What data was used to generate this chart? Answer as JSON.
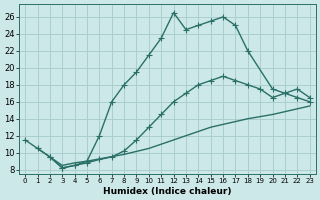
{
  "xlabel": "Humidex (Indice chaleur)",
  "xlim": [
    -0.5,
    23.5
  ],
  "ylim": [
    7.5,
    27.5
  ],
  "xticks": [
    0,
    1,
    2,
    3,
    4,
    5,
    6,
    7,
    8,
    9,
    10,
    11,
    12,
    13,
    14,
    15,
    16,
    17,
    18,
    19,
    20,
    21,
    22,
    23
  ],
  "yticks": [
    8,
    10,
    12,
    14,
    16,
    18,
    20,
    22,
    24,
    26
  ],
  "bg_color": "#cce8e8",
  "grid_color": "#aacece",
  "line_color": "#2a7068",
  "line1_x": [
    0,
    1,
    2,
    3,
    4,
    5,
    6,
    7,
    8,
    9,
    10,
    11,
    12,
    13,
    14,
    15,
    16,
    17,
    18,
    20,
    21,
    22,
    23
  ],
  "line1_y": [
    11.5,
    10.5,
    9.5,
    8.2,
    8.5,
    9.0,
    12.0,
    16.0,
    18.0,
    19.5,
    21.5,
    23.5,
    26.5,
    24.5,
    25.0,
    25.5,
    26.0,
    25.0,
    22.0,
    17.5,
    17.0,
    17.5,
    16.5
  ],
  "line2_x": [
    2,
    3,
    4,
    5,
    6,
    7,
    8,
    9,
    10,
    11,
    12,
    13,
    14,
    15,
    16,
    17,
    18,
    19,
    20,
    21,
    22,
    23
  ],
  "line2_y": [
    9.5,
    8.2,
    8.5,
    8.8,
    9.2,
    9.5,
    10.2,
    11.5,
    13.0,
    14.5,
    16.0,
    17.0,
    18.0,
    18.5,
    19.0,
    18.5,
    18.0,
    17.5,
    16.5,
    17.0,
    16.5,
    16.0
  ],
  "line3_x": [
    1,
    2,
    3,
    4,
    5,
    8,
    10,
    13,
    15,
    18,
    20,
    23
  ],
  "line3_y": [
    10.5,
    9.5,
    8.5,
    8.8,
    9.0,
    9.8,
    10.5,
    12.0,
    13.0,
    14.0,
    14.5,
    15.5
  ]
}
